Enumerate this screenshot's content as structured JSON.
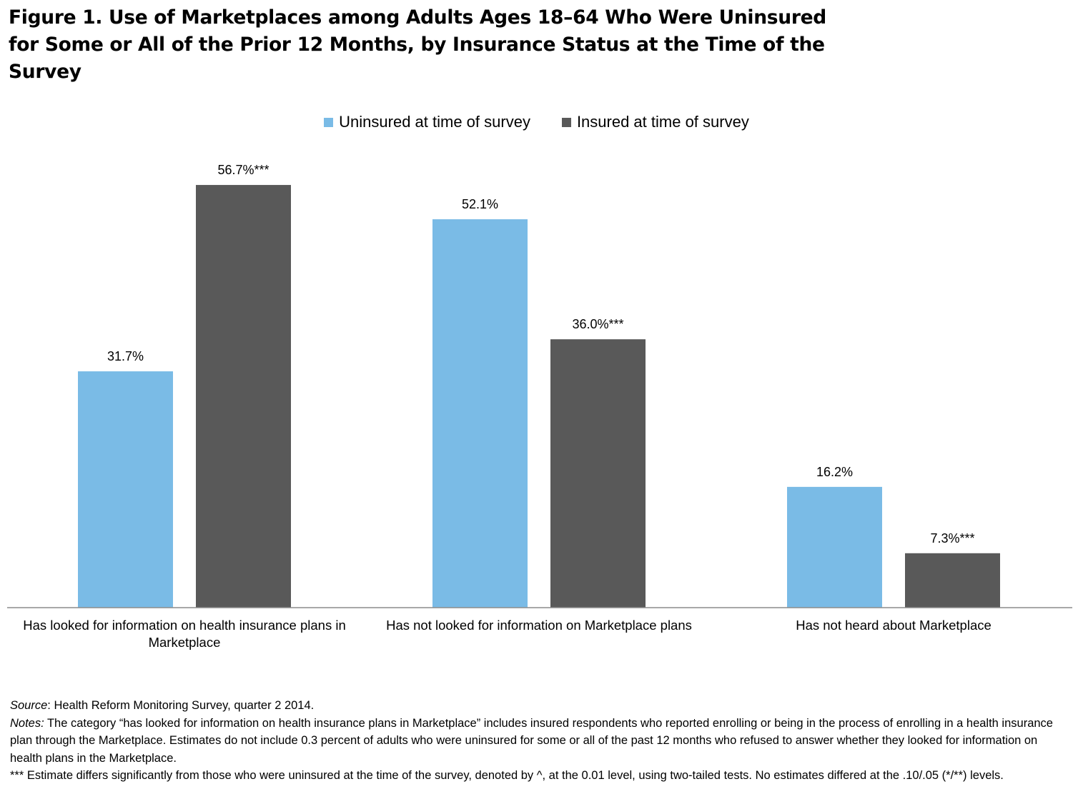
{
  "title": "Figure 1. Use of Marketplaces among Adults Ages 18–64 Who Were Uninsured for Some or All of the Prior 12 Months, by Insurance Status at the Time of the Survey",
  "colors": {
    "uninsured": "#7abbe6",
    "insured": "#595959",
    "axis": "#8c8c8c"
  },
  "chart_data": {
    "type": "bar",
    "title": "Figure 1. Use of Marketplaces among Adults Ages 18–64 Who Were Uninsured for Some or All of the Prior 12 Months, by Insurance Status at the Time of the Survey",
    "categories": [
      "Has looked for information on health insurance plans in Marketplace",
      "Has not looked for information on Marketplace plans",
      "Has not heard about Marketplace"
    ],
    "series": [
      {
        "name": "Uninsured at time of survey",
        "values": [
          31.7,
          52.1,
          16.2
        ],
        "labels": [
          "31.7%",
          "52.1%",
          "16.2%"
        ]
      },
      {
        "name": "Insured at time of survey",
        "values": [
          56.7,
          36.0,
          7.3
        ],
        "labels": [
          "56.7%***",
          "36.0%***",
          "7.3%***"
        ]
      }
    ],
    "unit": "%",
    "ylim": [
      0,
      60
    ],
    "legend_position": "top-center",
    "grid": false,
    "xlabel": "",
    "ylabel": ""
  },
  "notes": {
    "source_label": "Source",
    "source_text": ": Health Reform Monitoring Survey, quarter 2 2014.",
    "notes_label": "Notes:",
    "notes_text": "  The category “has looked for information on health insurance plans in Marketplace” includes insured respondents who reported enrolling or being in the process of enrolling in a health insurance plan through the Marketplace. Estimates do not include 0.3 percent of adults who were uninsured for some or all of the past 12 months who refused to answer whether they looked for information on health plans in the Marketplace.",
    "significance_text": "*** Estimate differs significantly from those who were uninsured at the time of the survey, denoted by ^, at the 0.01 level, using two-tailed tests.  No estimates differed at the .10/.05 (*/**) levels."
  }
}
